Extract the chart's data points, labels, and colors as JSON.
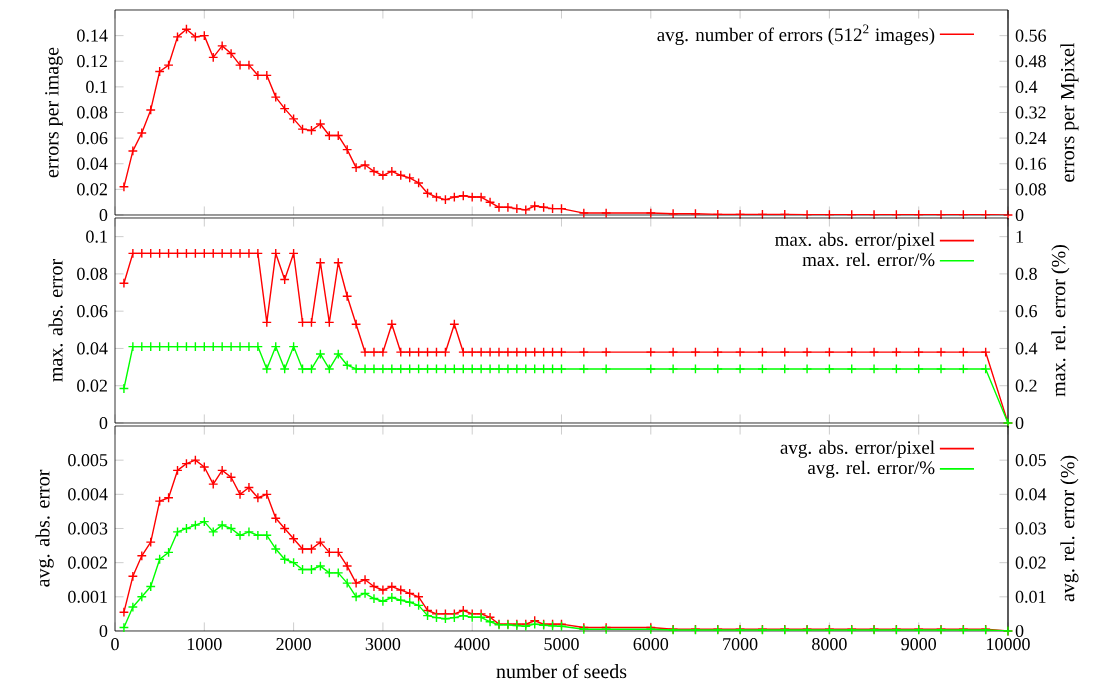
{
  "chart_data": [
    {
      "type": "line",
      "ylabel": "errors per image",
      "y2label": "errors per Mpixel",
      "legend": "top right",
      "tick_labels": "y",
      "x": [
        100,
        200,
        300,
        400,
        500,
        600,
        700,
        800,
        900,
        1000,
        1100,
        1200,
        1300,
        1400,
        1500,
        1600,
        1700,
        1800,
        1900,
        2000,
        2100,
        2200,
        2300,
        2400,
        2500,
        2600,
        2700,
        2800,
        2900,
        3000,
        3100,
        3200,
        3300,
        3400,
        3500,
        3600,
        3700,
        3800,
        3900,
        4000,
        4100,
        4200,
        4300,
        4400,
        4500,
        4600,
        4700,
        4800,
        4900,
        5000,
        5250,
        5500,
        6000,
        6250,
        6500,
        6750,
        7000,
        7250,
        7500,
        7750,
        8000,
        8250,
        8500,
        8750,
        9000,
        9250,
        9500,
        9750,
        10000
      ],
      "xlim": [
        0,
        10000
      ],
      "xticks": [
        0,
        1000,
        2000,
        3000,
        4000,
        5000,
        6000,
        7000,
        8000,
        9000,
        10000
      ],
      "ylim": [
        0,
        0.16
      ],
      "yticks": [
        0,
        0.02,
        0.04,
        0.06,
        0.08,
        0.1,
        0.12,
        0.14
      ],
      "y2lim": [
        0,
        0.64
      ],
      "y2ticks": [
        0,
        0.08,
        0.16,
        0.24,
        0.32,
        0.4,
        0.48,
        0.56
      ],
      "series": [
        {
          "name": "avg. number of errors (512$^{2}$ images)",
          "color": "#ff0000",
          "marker": "cross",
          "values": [
            0.022,
            0.05,
            0.064,
            0.082,
            0.112,
            0.117,
            0.139,
            0.145,
            0.139,
            0.14,
            0.123,
            0.132,
            0.126,
            0.117,
            0.117,
            0.109,
            0.109,
            0.092,
            0.083,
            0.075,
            0.067,
            0.066,
            0.071,
            0.062,
            0.062,
            0.051,
            0.037,
            0.039,
            0.034,
            0.031,
            0.034,
            0.031,
            0.029,
            0.025,
            0.017,
            0.014,
            0.012,
            0.014,
            0.015,
            0.014,
            0.014,
            0.01,
            0.006,
            0.006,
            0.005,
            0.004,
            0.007,
            0.006,
            0.005,
            0.005,
            0.0015,
            0.0015,
            0.0015,
            0.001,
            0.001,
            0.0005,
            0.0005,
            0.0005,
            0.0005,
            0.0003,
            0.0003,
            0.0003,
            0.0003,
            0.0003,
            0.0003,
            0.0003,
            0.0003,
            0.0003,
            0
          ]
        }
      ]
    },
    {
      "type": "line",
      "ylabel": "max. abs. error",
      "y2label": "max. rel. error (%)",
      "legend": "top right",
      "tick_labels": "y",
      "x": [
        100,
        200,
        300,
        400,
        500,
        600,
        700,
        800,
        900,
        1000,
        1100,
        1200,
        1300,
        1400,
        1500,
        1600,
        1700,
        1800,
        1900,
        2000,
        2100,
        2200,
        2300,
        2400,
        2500,
        2600,
        2700,
        2800,
        2900,
        3000,
        3100,
        3200,
        3300,
        3400,
        3500,
        3600,
        3700,
        3800,
        3900,
        4000,
        4100,
        4200,
        4300,
        4400,
        4500,
        4600,
        4700,
        4800,
        4900,
        5000,
        5250,
        5500,
        6000,
        6250,
        6500,
        6750,
        7000,
        7250,
        7500,
        7750,
        8000,
        8250,
        8500,
        8750,
        9000,
        9250,
        9500,
        9750,
        10000
      ],
      "xlim": [
        0,
        10000
      ],
      "xticks": [
        0,
        1000,
        2000,
        3000,
        4000,
        5000,
        6000,
        7000,
        8000,
        9000,
        10000
      ],
      "ylim": [
        0,
        0.11
      ],
      "yticks": [
        0,
        0.02,
        0.04,
        0.06,
        0.08,
        0.1
      ],
      "y2lim": [
        0,
        1.1
      ],
      "y2ticks": [
        0,
        0.2,
        0.4,
        0.6,
        0.8,
        1
      ],
      "series": [
        {
          "name": "max. abs. error/pixel",
          "color": "#ff0000",
          "marker": "cross",
          "values": [
            0.075,
            0.091,
            0.091,
            0.091,
            0.091,
            0.091,
            0.091,
            0.091,
            0.091,
            0.091,
            0.091,
            0.091,
            0.091,
            0.091,
            0.091,
            0.091,
            0.054,
            0.091,
            0.077,
            0.091,
            0.054,
            0.054,
            0.086,
            0.054,
            0.086,
            0.068,
            0.053,
            0.038,
            0.038,
            0.038,
            0.053,
            0.038,
            0.038,
            0.038,
            0.038,
            0.038,
            0.038,
            0.053,
            0.038,
            0.038,
            0.038,
            0.038,
            0.038,
            0.038,
            0.038,
            0.038,
            0.038,
            0.038,
            0.038,
            0.038,
            0.038,
            0.038,
            0.038,
            0.038,
            0.038,
            0.038,
            0.038,
            0.038,
            0.038,
            0.038,
            0.038,
            0.038,
            0.038,
            0.038,
            0.038,
            0.038,
            0.038,
            0.038,
            0
          ]
        },
        {
          "name": "max. rel. error/%",
          "color": "#00ff00",
          "marker": "cross",
          "axis": "y2",
          "values": [
            0.185,
            0.41,
            0.41,
            0.41,
            0.41,
            0.41,
            0.41,
            0.41,
            0.41,
            0.41,
            0.41,
            0.41,
            0.41,
            0.41,
            0.41,
            0.41,
            0.29,
            0.41,
            0.29,
            0.41,
            0.29,
            0.29,
            0.37,
            0.29,
            0.37,
            0.31,
            0.29,
            0.29,
            0.29,
            0.29,
            0.29,
            0.29,
            0.29,
            0.29,
            0.29,
            0.29,
            0.29,
            0.29,
            0.29,
            0.29,
            0.29,
            0.29,
            0.29,
            0.29,
            0.29,
            0.29,
            0.29,
            0.29,
            0.29,
            0.29,
            0.29,
            0.29,
            0.29,
            0.29,
            0.29,
            0.29,
            0.29,
            0.29,
            0.29,
            0.29,
            0.29,
            0.29,
            0.29,
            0.29,
            0.29,
            0.29,
            0.29,
            0.29,
            0
          ]
        }
      ]
    },
    {
      "type": "line",
      "xlabel": "number of seeds",
      "ylabel": "avg. abs. error",
      "y2label": "avg. rel. error (%)",
      "legend": "top right",
      "x": [
        100,
        200,
        300,
        400,
        500,
        600,
        700,
        800,
        900,
        1000,
        1100,
        1200,
        1300,
        1400,
        1500,
        1600,
        1700,
        1800,
        1900,
        2000,
        2100,
        2200,
        2300,
        2400,
        2500,
        2600,
        2700,
        2800,
        2900,
        3000,
        3100,
        3200,
        3300,
        3400,
        3500,
        3600,
        3700,
        3800,
        3900,
        4000,
        4100,
        4200,
        4300,
        4400,
        4500,
        4600,
        4700,
        4800,
        4900,
        5000,
        5250,
        5500,
        6000,
        6250,
        6500,
        6750,
        7000,
        7250,
        7500,
        7750,
        8000,
        8250,
        8500,
        8750,
        9000,
        9250,
        9500,
        9750,
        10000
      ],
      "xlim": [
        0,
        10000
      ],
      "xticks": [
        0,
        1000,
        2000,
        3000,
        4000,
        5000,
        6000,
        7000,
        8000,
        9000,
        10000
      ],
      "ylim": [
        0,
        0.006
      ],
      "yticks": [
        0,
        0.001,
        0.002,
        0.003,
        0.004,
        0.005
      ],
      "y2lim": [
        0,
        0.06
      ],
      "y2ticks": [
        0,
        0.01,
        0.02,
        0.03,
        0.04,
        0.05
      ],
      "series": [
        {
          "name": "avg. abs. error/pixel",
          "color": "#ff0000",
          "marker": "cross",
          "values": [
            0.00055,
            0.0016,
            0.0022,
            0.0026,
            0.0038,
            0.0039,
            0.0047,
            0.0049,
            0.005,
            0.0048,
            0.0043,
            0.0047,
            0.0045,
            0.004,
            0.0042,
            0.0039,
            0.004,
            0.0033,
            0.003,
            0.0027,
            0.0024,
            0.0024,
            0.0026,
            0.0023,
            0.0023,
            0.0019,
            0.0014,
            0.0015,
            0.0013,
            0.0012,
            0.0013,
            0.0012,
            0.0011,
            0.001,
            0.0006,
            0.0005,
            0.0005,
            0.0005,
            0.0006,
            0.0005,
            0.0005,
            0.0004,
            0.0002,
            0.0002,
            0.0002,
            0.0002,
            0.0003,
            0.0002,
            0.0002,
            0.0002,
            0.0001,
            0.0001,
            0.0001,
            5e-05,
            5e-05,
            5e-05,
            5e-05,
            5e-05,
            5e-05,
            5e-05,
            5e-05,
            5e-05,
            5e-05,
            5e-05,
            5e-05,
            5e-05,
            5e-05,
            5e-05,
            0
          ]
        },
        {
          "name": "avg. rel. error/%",
          "color": "#00ff00",
          "marker": "cross",
          "axis": "y2",
          "values": [
            0.001,
            0.007,
            0.01,
            0.013,
            0.021,
            0.023,
            0.029,
            0.03,
            0.031,
            0.032,
            0.029,
            0.031,
            0.03,
            0.028,
            0.029,
            0.028,
            0.028,
            0.024,
            0.021,
            0.02,
            0.018,
            0.018,
            0.019,
            0.017,
            0.017,
            0.014,
            0.01,
            0.011,
            0.0095,
            0.0087,
            0.0098,
            0.009,
            0.0084,
            0.0075,
            0.0045,
            0.0039,
            0.0036,
            0.0039,
            0.0045,
            0.004,
            0.004,
            0.0027,
            0.0018,
            0.0018,
            0.0016,
            0.0014,
            0.002,
            0.0017,
            0.0015,
            0.0014,
            0.0005,
            0.0005,
            0.0005,
            0.0003,
            0.0003,
            0.0003,
            0.0003,
            0.0003,
            0.0003,
            0.0003,
            0.0003,
            0.0003,
            0.0003,
            0.0003,
            0.0003,
            0.0003,
            0.0003,
            0.0003,
            0
          ]
        }
      ]
    }
  ]
}
